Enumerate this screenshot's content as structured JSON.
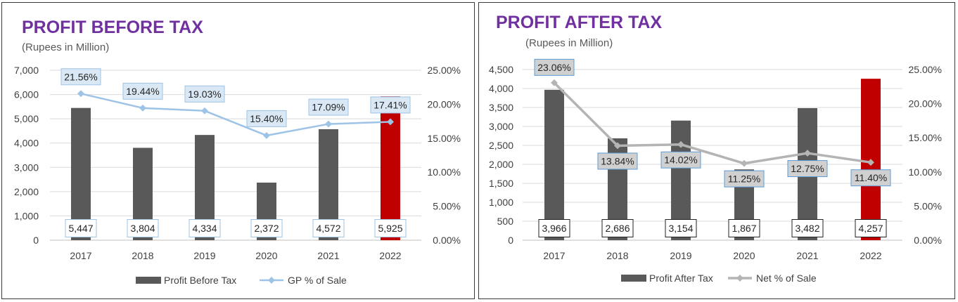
{
  "chart_data": [
    {
      "type": "bar",
      "title": "PROFIT BEFORE TAX",
      "subtitle": "(Rupees in Million)",
      "categories": [
        "2017",
        "2018",
        "2019",
        "2020",
        "2021",
        "2022"
      ],
      "series": [
        {
          "name": "Profit Before Tax",
          "type": "bar",
          "axis": "primary",
          "values": [
            5447,
            3804,
            4334,
            2372,
            4572,
            5925
          ],
          "labels": [
            "5,447",
            "3,804",
            "4,334",
            "2,372",
            "4,572",
            "5,925"
          ]
        },
        {
          "name": "GP % of Sale",
          "type": "line",
          "axis": "secondary",
          "values": [
            21.56,
            19.44,
            19.03,
            15.4,
            17.09,
            17.41
          ],
          "labels": [
            "21.56%",
            "19.44%",
            "19.03%",
            "15.40%",
            "17.09%",
            "17.41%"
          ]
        }
      ],
      "yticks": [
        "0",
        "1,000",
        "2,000",
        "3,000",
        "4,000",
        "5,000",
        "6,000",
        "7,000"
      ],
      "ylim": [
        0,
        7000
      ],
      "y2ticks": [
        "0.00%",
        "5.00%",
        "10.00%",
        "15.00%",
        "20.00%",
        "25.00%"
      ],
      "y2lim": [
        0,
        25
      ],
      "grid": true,
      "legend": "bottom",
      "colors": {
        "bar": "#595959",
        "highlight_bar": "#c00000",
        "line": "#9dc3e6",
        "label_fill": "#dae8f5",
        "label_border": "#9dc3e6",
        "title": "#7030a0"
      },
      "highlight_index": 5
    },
    {
      "type": "bar",
      "title": "PROFIT AFTER TAX",
      "subtitle": "(Rupees in Million)",
      "categories": [
        "2017",
        "2018",
        "2019",
        "2020",
        "2021",
        "2022"
      ],
      "series": [
        {
          "name": "Profit After Tax",
          "type": "bar",
          "axis": "primary",
          "values": [
            3966,
            2686,
            3154,
            1867,
            3482,
            4257
          ],
          "labels": [
            "3,966",
            "2,686",
            "3,154",
            "1,867",
            "3,482",
            "4,257"
          ]
        },
        {
          "name": "Net % of Sale",
          "type": "line",
          "axis": "secondary",
          "values": [
            23.06,
            13.84,
            14.02,
            11.25,
            12.75,
            11.4
          ],
          "labels": [
            "23.06%",
            "13.84%",
            "14.02%",
            "11.25%",
            "12.75%",
            "11.40%"
          ]
        }
      ],
      "yticks": [
        "0",
        "500",
        "1,000",
        "1,500",
        "2,000",
        "2,500",
        "3,000",
        "3,500",
        "4,000",
        "4,500"
      ],
      "ylim": [
        0,
        4500
      ],
      "y2ticks": [
        "0.00%",
        "5.00%",
        "10.00%",
        "15.00%",
        "20.00%",
        "25.00%"
      ],
      "y2lim": [
        0,
        25
      ],
      "grid": true,
      "legend": "bottom",
      "colors": {
        "bar": "#595959",
        "highlight_bar": "#c00000",
        "line": "#b4b4b4",
        "label_fill": "#d0d0d0",
        "label_border": "#5b9bd5",
        "title": "#7030a0"
      },
      "highlight_index": 5
    }
  ]
}
